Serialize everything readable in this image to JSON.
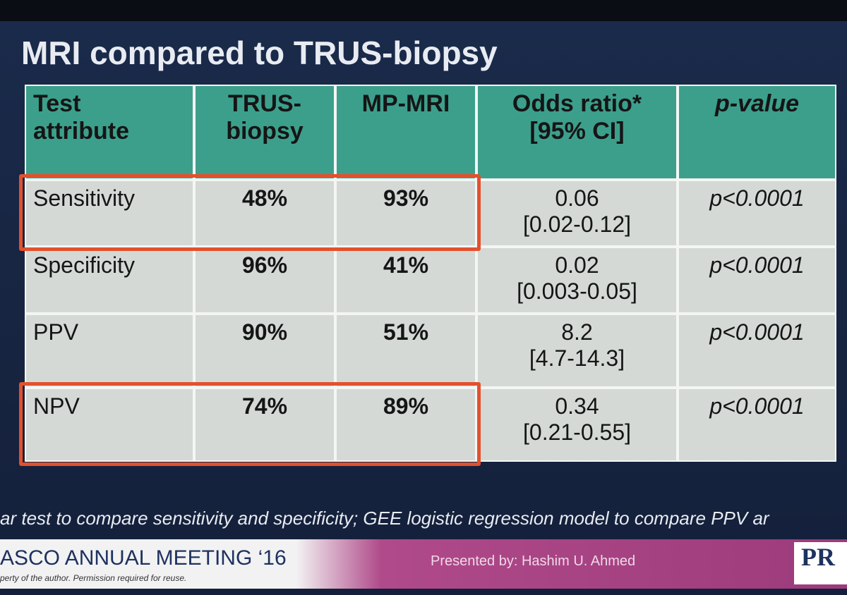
{
  "title": "MRI compared to TRUS-biopsy",
  "table": {
    "header": [
      [
        "Test",
        "attribute"
      ],
      [
        "TRUS-",
        "biopsy"
      ],
      [
        "MP-MRI"
      ],
      [
        "Odds ratio*",
        "[95% CI]"
      ],
      [
        "p-value"
      ]
    ],
    "rows": [
      {
        "attribute": "Sensitivity",
        "trus": "48%",
        "mri": "93%",
        "odds_ratio": [
          "0.06",
          "[0.02-0.12]"
        ],
        "p": "p<0.0001"
      },
      {
        "attribute": "Specificity",
        "trus": "96%",
        "mri": "41%",
        "odds_ratio": [
          "0.02",
          "[0.003-0.05]"
        ],
        "p": "p<0.0001"
      },
      {
        "attribute": "PPV",
        "trus": "90%",
        "mri": "51%",
        "odds_ratio": [
          "8.2",
          "[4.7-14.3]"
        ],
        "p": "p<0.0001"
      },
      {
        "attribute": "NPV",
        "trus": "74%",
        "mri": "89%",
        "odds_ratio": [
          "0.34",
          "[0.21-0.55]"
        ],
        "p": "p<0.0001"
      }
    ]
  },
  "footnote": "ar test to compare sensitivity and specificity; GEE logistic regression model to compare PPV ar",
  "footer": {
    "meeting": "ASCO ANNUAL MEETING ‘16",
    "notice": "perty of the author. Permission required for reuse.",
    "presenter": "Presented by: Hashim U. Ahmed",
    "logo": "PR"
  }
}
